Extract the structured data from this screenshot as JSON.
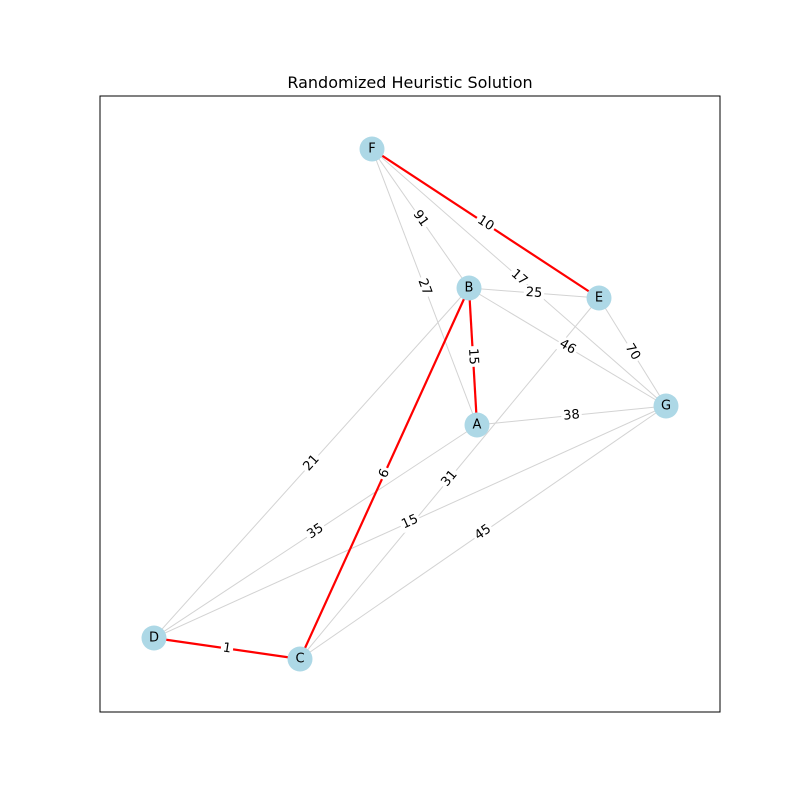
{
  "title": "Randomized Heuristic Solution",
  "colors": {
    "node_fill": "#add8e6",
    "edge_default": "#d3d3d3",
    "edge_highlight": "#ff0000",
    "frame": "#000000",
    "background": "#ffffff"
  },
  "nodes": [
    {
      "id": "A",
      "label": "A"
    },
    {
      "id": "B",
      "label": "B"
    },
    {
      "id": "C",
      "label": "C"
    },
    {
      "id": "D",
      "label": "D"
    },
    {
      "id": "E",
      "label": "E"
    },
    {
      "id": "F",
      "label": "F"
    },
    {
      "id": "G",
      "label": "G"
    }
  ],
  "edges": [
    {
      "source": "F",
      "target": "B",
      "weight": "91",
      "highlighted": false
    },
    {
      "source": "F",
      "target": "A",
      "weight": "27",
      "highlighted": false
    },
    {
      "source": "F",
      "target": "G",
      "weight": "17",
      "highlighted": false
    },
    {
      "source": "B",
      "target": "E",
      "weight": "25",
      "highlighted": false
    },
    {
      "source": "B",
      "target": "G",
      "weight": "46",
      "highlighted": false
    },
    {
      "source": "B",
      "target": "D",
      "weight": "21",
      "highlighted": false
    },
    {
      "source": "E",
      "target": "G",
      "weight": "70",
      "highlighted": false
    },
    {
      "source": "E",
      "target": "C",
      "weight": "31",
      "highlighted": false
    },
    {
      "source": "A",
      "target": "G",
      "weight": "38",
      "highlighted": false
    },
    {
      "source": "A",
      "target": "D",
      "weight": "35",
      "highlighted": false
    },
    {
      "source": "D",
      "target": "G",
      "weight": "15",
      "highlighted": false
    },
    {
      "source": "C",
      "target": "G",
      "weight": "45",
      "highlighted": false
    },
    {
      "source": "F",
      "target": "E",
      "weight": "10",
      "highlighted": true
    },
    {
      "source": "B",
      "target": "A",
      "weight": "15",
      "highlighted": true
    },
    {
      "source": "B",
      "target": "C",
      "weight": "6",
      "highlighted": true
    },
    {
      "source": "D",
      "target": "C",
      "weight": "1",
      "highlighted": true
    }
  ]
}
